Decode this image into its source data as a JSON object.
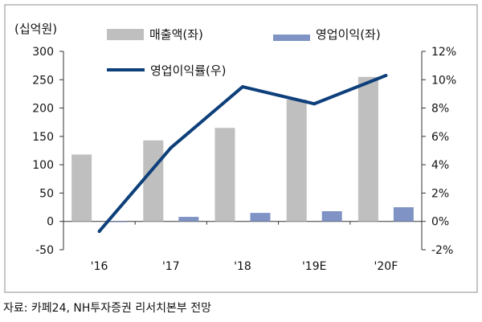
{
  "chart_data": {
    "type": "bar",
    "categories": [
      "'16",
      "'17",
      "'18",
      "'19E",
      "'20F"
    ],
    "left_axis": {
      "unit_label": "(십억원)",
      "range": [
        -50,
        300
      ],
      "ticks": [
        -50,
        0,
        50,
        100,
        150,
        200,
        250,
        300
      ]
    },
    "right_axis": {
      "range": [
        -2,
        12
      ],
      "ticks": [
        "-2%",
        "0%",
        "2%",
        "4%",
        "6%",
        "8%",
        "10%",
        "12%"
      ]
    },
    "series": [
      {
        "name": "매출액(좌)",
        "type": "bar",
        "axis": "left",
        "color": "#bfbfbf",
        "values": [
          118,
          143,
          165,
          215,
          255
        ]
      },
      {
        "name": "영업이익(좌)",
        "type": "bar",
        "axis": "left",
        "color": "#7f94c4",
        "values": [
          -1,
          8,
          15,
          18,
          25
        ]
      },
      {
        "name": "영업이익률(우)",
        "type": "line",
        "axis": "right",
        "color": "#0d3f7a",
        "values": [
          -0.7,
          5.2,
          9.5,
          8.3,
          10.3
        ]
      }
    ],
    "grid": false,
    "legend_placement": "top"
  },
  "source": "자료: 카페24, NH투자증권 리서치본부 전망"
}
